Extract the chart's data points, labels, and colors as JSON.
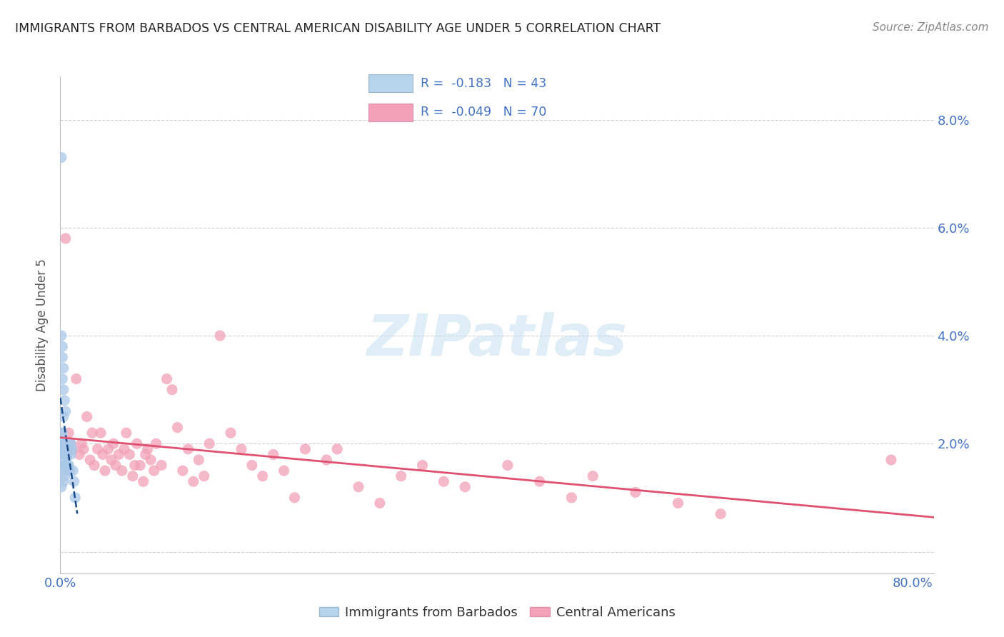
{
  "title": "IMMIGRANTS FROM BARBADOS VS CENTRAL AMERICAN DISABILITY AGE UNDER 5 CORRELATION CHART",
  "source": "Source: ZipAtlas.com",
  "ylabel_label": "Disability Age Under 5",
  "xlim": [
    0.0,
    0.82
  ],
  "ylim": [
    -0.004,
    0.088
  ],
  "legend_r_blue": "-0.183",
  "legend_n_blue": "43",
  "legend_r_pink": "-0.049",
  "legend_n_pink": "70",
  "blue_color": "#aac8e8",
  "pink_color": "#f2a0b8",
  "blue_line_color": "#1a4a8a",
  "pink_line_color": "#e05070",
  "tick_color": "#4472c4",
  "label_color": "#555555",
  "grid_color": "#d0d0d0",
  "background_color": "#ffffff",
  "watermark": "ZIPatlas",
  "blue_scatter_x": [
    0.001,
    0.001,
    0.001,
    0.001,
    0.002,
    0.002,
    0.002,
    0.002,
    0.002,
    0.002,
    0.002,
    0.003,
    0.003,
    0.003,
    0.003,
    0.003,
    0.003,
    0.003,
    0.003,
    0.004,
    0.004,
    0.004,
    0.004,
    0.004,
    0.005,
    0.005,
    0.005,
    0.005,
    0.006,
    0.006,
    0.006,
    0.007,
    0.007,
    0.008,
    0.008,
    0.009,
    0.009,
    0.01,
    0.01,
    0.011,
    0.012,
    0.013,
    0.014
  ],
  "blue_scatter_y": [
    0.073,
    0.04,
    0.022,
    0.012,
    0.038,
    0.036,
    0.032,
    0.022,
    0.02,
    0.018,
    0.015,
    0.034,
    0.03,
    0.025,
    0.02,
    0.019,
    0.018,
    0.017,
    0.013,
    0.028,
    0.02,
    0.019,
    0.016,
    0.014,
    0.026,
    0.02,
    0.018,
    0.016,
    0.02,
    0.018,
    0.015,
    0.018,
    0.016,
    0.02,
    0.016,
    0.019,
    0.015,
    0.02,
    0.018,
    0.019,
    0.015,
    0.013,
    0.01
  ],
  "pink_scatter_x": [
    0.005,
    0.008,
    0.01,
    0.012,
    0.015,
    0.018,
    0.02,
    0.022,
    0.025,
    0.028,
    0.03,
    0.032,
    0.035,
    0.038,
    0.04,
    0.042,
    0.045,
    0.048,
    0.05,
    0.052,
    0.055,
    0.058,
    0.06,
    0.062,
    0.065,
    0.068,
    0.07,
    0.072,
    0.075,
    0.078,
    0.08,
    0.082,
    0.085,
    0.088,
    0.09,
    0.095,
    0.1,
    0.105,
    0.11,
    0.115,
    0.12,
    0.125,
    0.13,
    0.135,
    0.14,
    0.15,
    0.16,
    0.17,
    0.18,
    0.19,
    0.2,
    0.21,
    0.22,
    0.23,
    0.25,
    0.26,
    0.28,
    0.3,
    0.32,
    0.34,
    0.36,
    0.38,
    0.42,
    0.45,
    0.48,
    0.5,
    0.54,
    0.58,
    0.62,
    0.78
  ],
  "pink_scatter_y": [
    0.058,
    0.022,
    0.02,
    0.019,
    0.032,
    0.018,
    0.02,
    0.019,
    0.025,
    0.017,
    0.022,
    0.016,
    0.019,
    0.022,
    0.018,
    0.015,
    0.019,
    0.017,
    0.02,
    0.016,
    0.018,
    0.015,
    0.019,
    0.022,
    0.018,
    0.014,
    0.016,
    0.02,
    0.016,
    0.013,
    0.018,
    0.019,
    0.017,
    0.015,
    0.02,
    0.016,
    0.032,
    0.03,
    0.023,
    0.015,
    0.019,
    0.013,
    0.017,
    0.014,
    0.02,
    0.04,
    0.022,
    0.019,
    0.016,
    0.014,
    0.018,
    0.015,
    0.01,
    0.019,
    0.017,
    0.019,
    0.012,
    0.009,
    0.014,
    0.016,
    0.013,
    0.012,
    0.016,
    0.013,
    0.01,
    0.014,
    0.011,
    0.009,
    0.007,
    0.017
  ]
}
